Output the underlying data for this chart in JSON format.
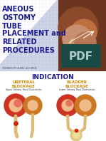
{
  "bg_color": "#cfd4e8",
  "title_lines": [
    "ANEOUS",
    "OSTOMY",
    "TUBE",
    "PLACEMENT and",
    "RELATED",
    "PROCEDURES"
  ],
  "title_color": "#1a1a8c",
  "title_fontsize": 7.0,
  "prepared_text": "PREPARED BY: AGRAT, ALD ARITA",
  "prepared_fontsize": 2.2,
  "prepared_color": "#555566",
  "section_label": "INDICATION",
  "section_color": "#1a1a8c",
  "section_fontsize": 6.5,
  "ureteral_label": "URETERAL\nBLOCKAGE",
  "ureteral_sub": "Upper Urinary Tract Obstruction",
  "bladder_label": "BLADDER\nBLOCKAGE",
  "bladder_sub": "Lower Urinary Tract Obstruction",
  "blockage_color": "#cc8800",
  "blockage_fontsize": 4.0,
  "sub_fontsize": 2.3,
  "sub_color": "#333333",
  "white_area_color": "#ffffff",
  "grid_color": "#aab0cc",
  "kidney_dark_bg": "#6b3520",
  "pdf_box_color": "#1a4a45",
  "pdf_text_color": "#b0cccc",
  "bottom_bg": "#ffffff",
  "kidney_outer": "#cc3322",
  "kidney_inner": "#f0bb88",
  "ureter_color": "#ddbb77",
  "bladder_color": "#ddcc88"
}
